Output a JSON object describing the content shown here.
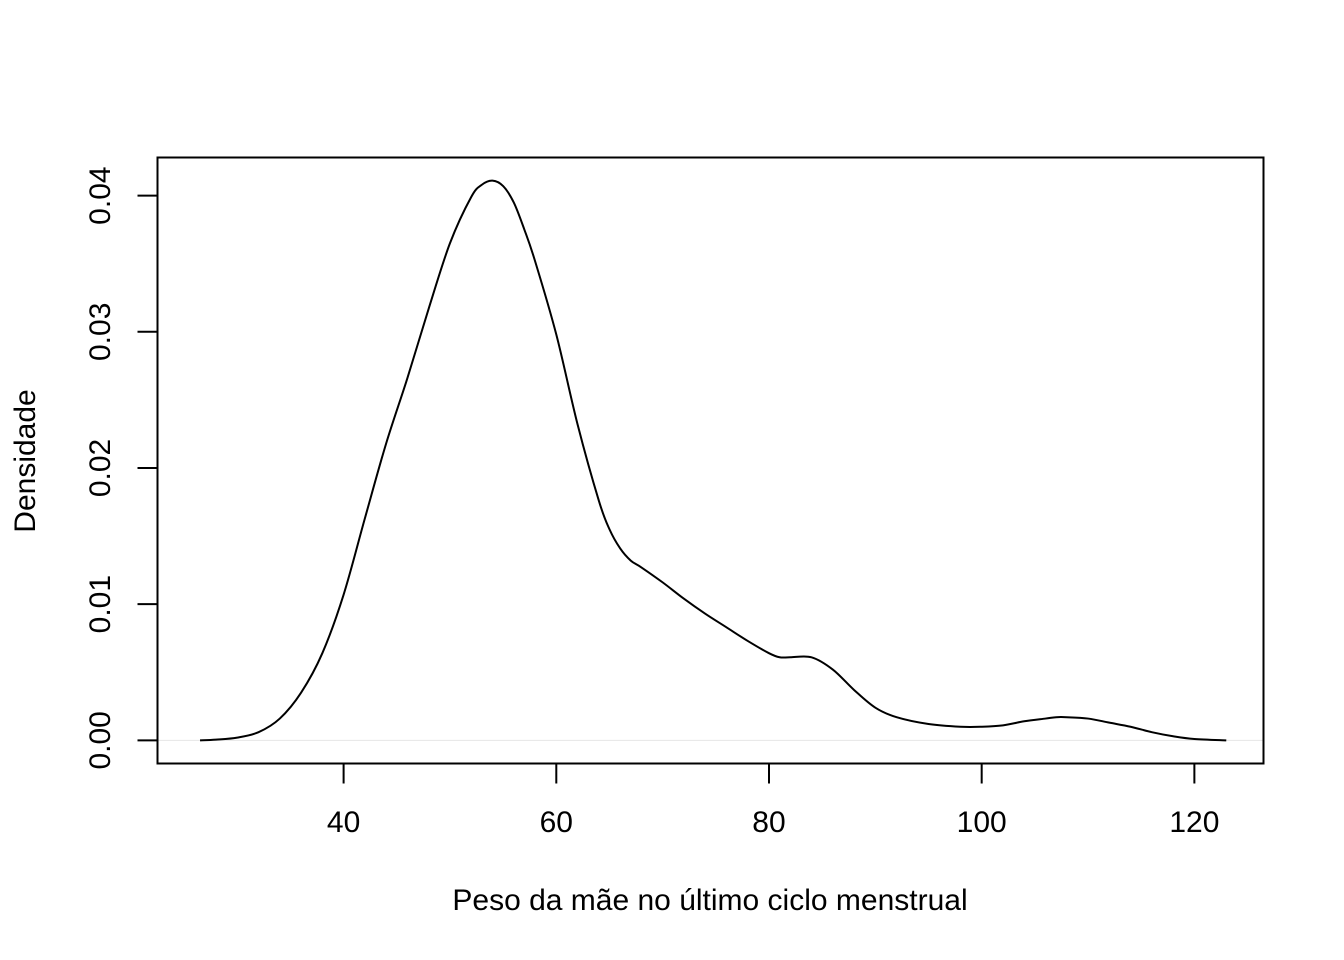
{
  "chart_data": {
    "type": "line",
    "title": "",
    "xlabel": "Peso da mãe no último ciclo menstrual",
    "ylabel": "Densidade",
    "xlim": [
      22.5,
      126.5
    ],
    "ylim": [
      -0.0017,
      0.0428
    ],
    "x_ticks": [
      40,
      60,
      80,
      100,
      120
    ],
    "x_tick_labels": [
      "40",
      "60",
      "80",
      "100",
      "120"
    ],
    "y_ticks": [
      0,
      0.01,
      0.02,
      0.03,
      0.04
    ],
    "y_tick_labels": [
      "0.00",
      "0.01",
      "0.02",
      "0.03",
      "0.04"
    ],
    "grid": false,
    "legend": "none",
    "baseline": 0,
    "colors": {
      "line": "#000000",
      "baseline": "#e6e6e6",
      "axis": "#000000"
    },
    "series": [
      {
        "x": [
          26.5,
          28,
          30,
          32,
          34,
          36,
          38,
          40,
          42,
          44,
          46,
          48,
          50,
          52,
          53,
          54,
          55,
          56,
          57,
          58,
          60,
          62,
          64,
          65,
          66,
          67,
          68,
          70,
          72,
          74,
          76,
          78,
          80,
          81,
          82,
          84,
          86,
          88,
          90,
          92,
          95,
          98,
          100,
          102,
          104,
          106,
          107,
          108,
          110,
          112,
          114,
          116,
          118,
          120,
          123
        ],
        "y": [
          0,
          5e-05,
          0.0002,
          0.0006,
          0.0016,
          0.0035,
          0.0064,
          0.0107,
          0.0163,
          0.0218,
          0.0266,
          0.0317,
          0.0365,
          0.0399,
          0.0408,
          0.0411,
          0.0407,
          0.0395,
          0.0375,
          0.0352,
          0.0298,
          0.0232,
          0.0176,
          0.0155,
          0.0141,
          0.0132,
          0.0127,
          0.0116,
          0.0104,
          0.0093,
          0.0083,
          0.0073,
          0.0064,
          0.0061,
          0.0061,
          0.0061,
          0.0052,
          0.0037,
          0.0024,
          0.0017,
          0.0012,
          0.001,
          0.001,
          0.0011,
          0.0014,
          0.0016,
          0.0017,
          0.0017,
          0.0016,
          0.0013,
          0.001,
          0.0006,
          0.0003,
          0.0001,
          0
        ]
      }
    ]
  }
}
